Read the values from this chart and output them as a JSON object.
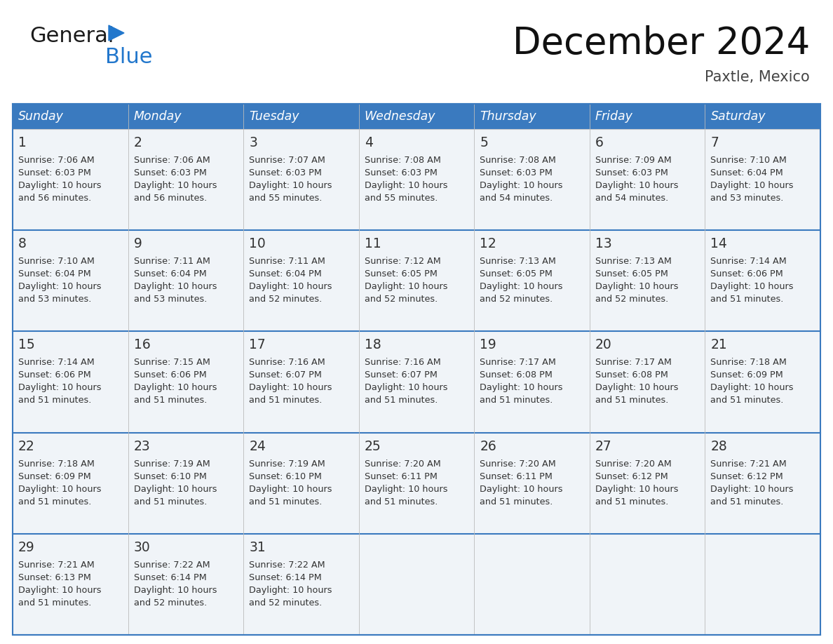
{
  "title": "December 2024",
  "subtitle": "Paxtle, Mexico",
  "days_of_week": [
    "Sunday",
    "Monday",
    "Tuesday",
    "Wednesday",
    "Thursday",
    "Friday",
    "Saturday"
  ],
  "header_bg": "#3a7abf",
  "header_text": "#ffffff",
  "cell_bg": "#f0f4f8",
  "day_num_color": "#333333",
  "text_color": "#333333",
  "divider_color": "#3a7abf",
  "cell_data": [
    [
      {
        "day": "1",
        "info": "Sunrise: 7:06 AM\nSunset: 6:03 PM\nDaylight: 10 hours\nand 56 minutes."
      },
      {
        "day": "2",
        "info": "Sunrise: 7:06 AM\nSunset: 6:03 PM\nDaylight: 10 hours\nand 56 minutes."
      },
      {
        "day": "3",
        "info": "Sunrise: 7:07 AM\nSunset: 6:03 PM\nDaylight: 10 hours\nand 55 minutes."
      },
      {
        "day": "4",
        "info": "Sunrise: 7:08 AM\nSunset: 6:03 PM\nDaylight: 10 hours\nand 55 minutes."
      },
      {
        "day": "5",
        "info": "Sunrise: 7:08 AM\nSunset: 6:03 PM\nDaylight: 10 hours\nand 54 minutes."
      },
      {
        "day": "6",
        "info": "Sunrise: 7:09 AM\nSunset: 6:03 PM\nDaylight: 10 hours\nand 54 minutes."
      },
      {
        "day": "7",
        "info": "Sunrise: 7:10 AM\nSunset: 6:04 PM\nDaylight: 10 hours\nand 53 minutes."
      }
    ],
    [
      {
        "day": "8",
        "info": "Sunrise: 7:10 AM\nSunset: 6:04 PM\nDaylight: 10 hours\nand 53 minutes."
      },
      {
        "day": "9",
        "info": "Sunrise: 7:11 AM\nSunset: 6:04 PM\nDaylight: 10 hours\nand 53 minutes."
      },
      {
        "day": "10",
        "info": "Sunrise: 7:11 AM\nSunset: 6:04 PM\nDaylight: 10 hours\nand 52 minutes."
      },
      {
        "day": "11",
        "info": "Sunrise: 7:12 AM\nSunset: 6:05 PM\nDaylight: 10 hours\nand 52 minutes."
      },
      {
        "day": "12",
        "info": "Sunrise: 7:13 AM\nSunset: 6:05 PM\nDaylight: 10 hours\nand 52 minutes."
      },
      {
        "day": "13",
        "info": "Sunrise: 7:13 AM\nSunset: 6:05 PM\nDaylight: 10 hours\nand 52 minutes."
      },
      {
        "day": "14",
        "info": "Sunrise: 7:14 AM\nSunset: 6:06 PM\nDaylight: 10 hours\nand 51 minutes."
      }
    ],
    [
      {
        "day": "15",
        "info": "Sunrise: 7:14 AM\nSunset: 6:06 PM\nDaylight: 10 hours\nand 51 minutes."
      },
      {
        "day": "16",
        "info": "Sunrise: 7:15 AM\nSunset: 6:06 PM\nDaylight: 10 hours\nand 51 minutes."
      },
      {
        "day": "17",
        "info": "Sunrise: 7:16 AM\nSunset: 6:07 PM\nDaylight: 10 hours\nand 51 minutes."
      },
      {
        "day": "18",
        "info": "Sunrise: 7:16 AM\nSunset: 6:07 PM\nDaylight: 10 hours\nand 51 minutes."
      },
      {
        "day": "19",
        "info": "Sunrise: 7:17 AM\nSunset: 6:08 PM\nDaylight: 10 hours\nand 51 minutes."
      },
      {
        "day": "20",
        "info": "Sunrise: 7:17 AM\nSunset: 6:08 PM\nDaylight: 10 hours\nand 51 minutes."
      },
      {
        "day": "21",
        "info": "Sunrise: 7:18 AM\nSunset: 6:09 PM\nDaylight: 10 hours\nand 51 minutes."
      }
    ],
    [
      {
        "day": "22",
        "info": "Sunrise: 7:18 AM\nSunset: 6:09 PM\nDaylight: 10 hours\nand 51 minutes."
      },
      {
        "day": "23",
        "info": "Sunrise: 7:19 AM\nSunset: 6:10 PM\nDaylight: 10 hours\nand 51 minutes."
      },
      {
        "day": "24",
        "info": "Sunrise: 7:19 AM\nSunset: 6:10 PM\nDaylight: 10 hours\nand 51 minutes."
      },
      {
        "day": "25",
        "info": "Sunrise: 7:20 AM\nSunset: 6:11 PM\nDaylight: 10 hours\nand 51 minutes."
      },
      {
        "day": "26",
        "info": "Sunrise: 7:20 AM\nSunset: 6:11 PM\nDaylight: 10 hours\nand 51 minutes."
      },
      {
        "day": "27",
        "info": "Sunrise: 7:20 AM\nSunset: 6:12 PM\nDaylight: 10 hours\nand 51 minutes."
      },
      {
        "day": "28",
        "info": "Sunrise: 7:21 AM\nSunset: 6:12 PM\nDaylight: 10 hours\nand 51 minutes."
      }
    ],
    [
      {
        "day": "29",
        "info": "Sunrise: 7:21 AM\nSunset: 6:13 PM\nDaylight: 10 hours\nand 51 minutes."
      },
      {
        "day": "30",
        "info": "Sunrise: 7:22 AM\nSunset: 6:14 PM\nDaylight: 10 hours\nand 52 minutes."
      },
      {
        "day": "31",
        "info": "Sunrise: 7:22 AM\nSunset: 6:14 PM\nDaylight: 10 hours\nand 52 minutes."
      },
      {
        "day": "",
        "info": ""
      },
      {
        "day": "",
        "info": ""
      },
      {
        "day": "",
        "info": ""
      },
      {
        "day": "",
        "info": ""
      }
    ]
  ],
  "logo_general_color": "#1a1a1a",
  "logo_blue_color": "#2277cc",
  "logo_triangle_color": "#2277cc"
}
